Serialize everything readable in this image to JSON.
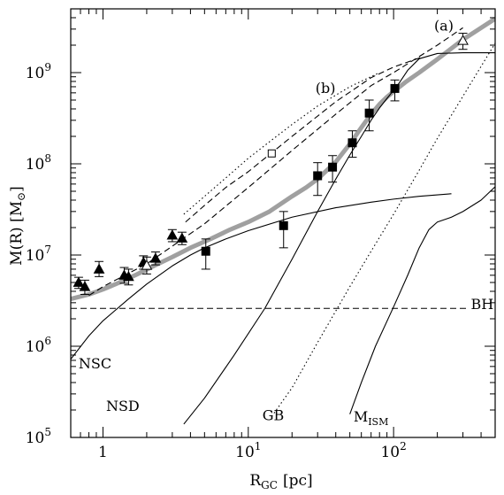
{
  "chart_data": {
    "type": "scatter",
    "title": "",
    "xlabel": "R",
    "xlabel_sub": "GC",
    "xlabel_unit": "[pc]",
    "ylabel": "M(R)  [M",
    "ylabel_sub": "⊙",
    "ylabel_end": "]",
    "xscale": "log",
    "yscale": "log",
    "xlim": [
      0.6,
      500
    ],
    "ylim": [
      100000,
      5000000000
    ],
    "grid": false,
    "x_ticks": [
      {
        "value": 1,
        "label": "1",
        "exp": ""
      },
      {
        "value": 10,
        "label": "10",
        "exp": "1"
      },
      {
        "value": 100,
        "label": "10",
        "exp": "2"
      }
    ],
    "y_ticks": [
      {
        "value": 100000,
        "label": "10",
        "exp": "5"
      },
      {
        "value": 1000000,
        "label": "10",
        "exp": "6"
      },
      {
        "value": 10000000,
        "label": "10",
        "exp": "7"
      },
      {
        "value": 100000000,
        "label": "10",
        "exp": "8"
      },
      {
        "value": 1000000000,
        "label": "10",
        "exp": "9"
      }
    ],
    "curve_labels": [
      {
        "text": "NSC",
        "sub": "",
        "x": 0.68,
        "y": 570000
      },
      {
        "text": "NSD",
        "sub": "",
        "x": 1.05,
        "y": 195000
      },
      {
        "text": "GB",
        "sub": "",
        "x": 12.5,
        "y": 155000
      },
      {
        "text": "M",
        "sub": "ISM",
        "x": 53,
        "y": 150000
      },
      {
        "text": "BH",
        "sub": "",
        "x": 340,
        "y": 2550000
      },
      {
        "text": "(a)",
        "sub": "",
        "x": 190,
        "y": 2900000000
      },
      {
        "text": "(b)",
        "sub": "",
        "x": 29,
        "y": 600000000
      }
    ],
    "series": [
      {
        "kind": "total",
        "style": "thick-gray",
        "color": "#a0a0a0",
        "x": [
          0.6,
          0.8,
          1.0,
          1.3,
          1.7,
          2.2,
          3.0,
          4.0,
          5.5,
          7.5,
          10,
          14,
          20,
          25,
          30,
          40,
          50,
          60,
          70,
          80,
          90,
          100,
          120,
          150,
          200,
          300,
          500
        ],
        "y": [
          3300000,
          3700000,
          4200000,
          5000000,
          6100000,
          7500000,
          9500000,
          12000000,
          15000000,
          19000000,
          23000000,
          30000000,
          44000000,
          55000000,
          68000000,
          105000000,
          165000000,
          250000000,
          350000000,
          450000000,
          540000000,
          620000000,
          780000000,
          1000000000,
          1400000000,
          2300000000,
          3900000000
        ]
      },
      {
        "kind": "NSC",
        "style": "solid",
        "color": "#000000",
        "x": [
          0.6,
          0.8,
          1.0,
          1.5,
          2.0,
          3.0,
          4.0,
          5.0,
          7.0,
          10,
          20,
          40,
          70,
          100,
          150,
          250
        ],
        "y": [
          720000,
          1300000,
          1900000,
          3300000,
          4800000,
          7600000,
          10000000,
          12000000,
          15000000,
          18500000,
          26000000,
          33000000,
          38000000,
          41000000,
          44000000,
          47000000
        ]
      },
      {
        "kind": "NSD",
        "style": "solid",
        "color": "#000000",
        "x": [
          3.6,
          5,
          8,
          13,
          20,
          30,
          40,
          50,
          60,
          70,
          80,
          90,
          100,
          110,
          125,
          150,
          200,
          300,
          500
        ],
        "y": [
          140000,
          270000,
          800000,
          2600000,
          9000000,
          30000000,
          68000000,
          125000000,
          200000000,
          300000000,
          410000000,
          520000000,
          640000000,
          780000000,
          1060000000,
          1420000000,
          1620000000,
          1650000000,
          1650000000
        ]
      },
      {
        "kind": "GB",
        "style": "dotted",
        "color": "#000000",
        "x": [
          14.5,
          20,
          30,
          50,
          70,
          100,
          150,
          200,
          300,
          500
        ],
        "y": [
          170000,
          350000,
          1100000,
          4500000,
          11000000,
          28000000,
          85000000,
          190000000,
          550000000,
          2100000000
        ]
      },
      {
        "kind": "ISM",
        "style": "solid",
        "color": "#000000",
        "x": [
          50,
          60,
          75,
          100,
          125,
          150,
          175,
          200,
          250,
          300,
          400,
          500
        ],
        "y": [
          180000,
          400000,
          1000000,
          2700000,
          6000000,
          12000000,
          19000000,
          23000000,
          26000000,
          30000000,
          40000000,
          56000000
        ]
      },
      {
        "kind": "BH",
        "style": "dashed",
        "color": "#000000",
        "x": [
          0.6,
          330
        ],
        "y": [
          2600000,
          2600000
        ]
      },
      {
        "kind": "(a)",
        "style": "dashed",
        "color": "#000000",
        "x": [
          0.8,
          1.0,
          1.5,
          2.0,
          3.0,
          5.0,
          10,
          20,
          40,
          70,
          100,
          200,
          300
        ],
        "y": [
          3600000,
          4500000,
          6300000,
          8000000,
          12500000,
          22000000,
          55000000,
          140000000,
          350000000,
          720000000,
          1000000000,
          2000000000,
          3100000000
        ]
      },
      {
        "kind": "(b)",
        "style": "dashed",
        "color": "#000000",
        "x": [
          3.7,
          5,
          7,
          10,
          20,
          40,
          70,
          100,
          160
        ],
        "y": [
          23000000,
          35000000,
          55000000,
          82000000,
          200000000,
          480000000,
          880000000,
          1150000000,
          1500000000
        ]
      },
      {
        "kind": "(b)",
        "style": "dotted",
        "color": "#000000",
        "x": [
          3.6,
          5,
          7,
          10,
          15,
          20,
          30,
          50,
          80
        ],
        "y": [
          28000000,
          44000000,
          70000000,
          115000000,
          190000000,
          270000000,
          430000000,
          700000000,
          1000000000
        ]
      },
      {
        "kind": "triangles",
        "style": "marker-triangle-filled",
        "color": "#000000",
        "points": [
          {
            "x": 0.68,
            "y": 5000000,
            "lo": 4300000,
            "hi": 5700000
          },
          {
            "x": 0.75,
            "y": 4500000,
            "lo": 3700000,
            "hi": 5300000
          },
          {
            "x": 0.94,
            "y": 7000000,
            "lo": 5800000,
            "hi": 8500000
          },
          {
            "x": 1.4,
            "y": 6000000,
            "lo": 4900000,
            "hi": 7300000
          },
          {
            "x": 1.5,
            "y": 5800000,
            "lo": 4700000,
            "hi": 7000000
          },
          {
            "x": 1.9,
            "y": 8300000,
            "lo": 7000000,
            "hi": 9800000
          },
          {
            "x": 2.3,
            "y": 9200000,
            "lo": 7800000,
            "hi": 10800000
          },
          {
            "x": 3.0,
            "y": 16500000,
            "lo": 14000000,
            "hi": 19000000
          },
          {
            "x": 3.5,
            "y": 15300000,
            "lo": 13000000,
            "hi": 17800000
          }
        ]
      },
      {
        "kind": "triangles-open",
        "style": "marker-triangle-open",
        "color": "#000000",
        "points": [
          {
            "x": 2.0,
            "y": 7700000,
            "lo": 6200000,
            "hi": 9500000
          },
          {
            "x": 300,
            "y": 2250000000,
            "lo": 1800000000,
            "hi": 2700000000
          }
        ]
      },
      {
        "kind": "squares",
        "style": "marker-square-filled",
        "color": "#000000",
        "points": [
          {
            "x": 5.1,
            "y": 11000000,
            "lo": 7000000,
            "hi": 15000000
          },
          {
            "x": 17.5,
            "y": 21000000,
            "lo": 12000000,
            "hi": 30000000
          },
          {
            "x": 30,
            "y": 74000000,
            "lo": 45000000,
            "hi": 103000000
          },
          {
            "x": 38,
            "y": 92000000,
            "lo": 63000000,
            "hi": 123000000
          },
          {
            "x": 52,
            "y": 170000000,
            "lo": 118000000,
            "hi": 230000000
          },
          {
            "x": 68,
            "y": 360000000,
            "lo": 230000000,
            "hi": 500000000
          },
          {
            "x": 102,
            "y": 670000000,
            "lo": 490000000,
            "hi": 830000000
          }
        ]
      },
      {
        "kind": "squares-open",
        "style": "marker-square-open",
        "color": "#000000",
        "points": [
          {
            "x": 14.5,
            "y": 130000000
          }
        ]
      }
    ]
  }
}
